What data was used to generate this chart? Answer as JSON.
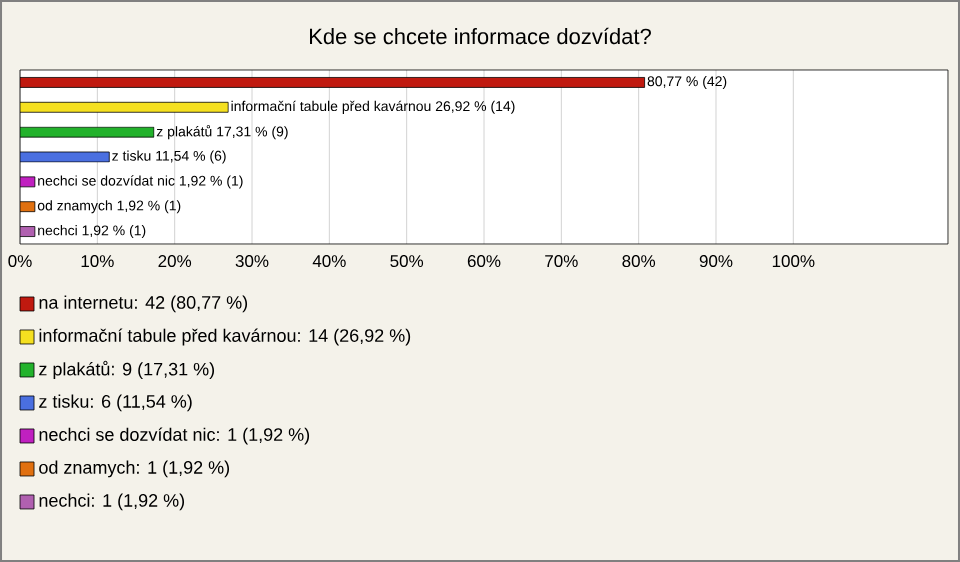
{
  "chart_data": {
    "type": "bar",
    "orientation": "horizontal",
    "title": "Kde se chcete informace dozvídat?",
    "categories": [
      null,
      null,
      null,
      null,
      null,
      null,
      null
    ],
    "values": [
      80.77,
      26.92,
      17.31,
      11.54,
      1.92,
      1.92,
      1.92
    ],
    "colors": [
      "#c0190f",
      "#f5e020",
      "#22b22b",
      "#4a6fe0",
      "#c020c0",
      "#e07010",
      "#b060b0"
    ],
    "value_labels": [
      "80,77 % (42)",
      "informační tabule před kavárnou 26,92 % (14)",
      "z plakátů 17,31 % (9)",
      "z tisku 11,54 % (6)",
      "nechci se dozvídat nic 1,92 % (1)",
      "od znamych 1,92 % (1)",
      "nechci 1,92 % (1)"
    ],
    "xlim": [
      0,
      120
    ],
    "xticks": [
      {
        "value": 0,
        "label": "0%"
      },
      {
        "value": 10,
        "label": "10%"
      },
      {
        "value": 20,
        "label": "20%"
      },
      {
        "value": 30,
        "label": "30%"
      },
      {
        "value": 40,
        "label": "40%"
      },
      {
        "value": 50,
        "label": "50%"
      },
      {
        "value": 60,
        "label": "60%"
      },
      {
        "value": 70,
        "label": "70%"
      },
      {
        "value": 80,
        "label": "80%"
      },
      {
        "value": 90,
        "label": "90%"
      },
      {
        "value": 100,
        "label": "100%"
      }
    ],
    "grid": "x",
    "annotations": [
      "na internetu: 42 (80,77 %)",
      "informační tabule před kavárnou: 14 (26,92 %)",
      "z plakátů: 9 (17,31 %)",
      "z tisku: 6 (11,54 %)",
      "nechci se dozvídat nic: 1 (1,92 %)",
      "od znamych: 1 (1,92 %)",
      "nechci: 1 (1,92 %)"
    ]
  }
}
